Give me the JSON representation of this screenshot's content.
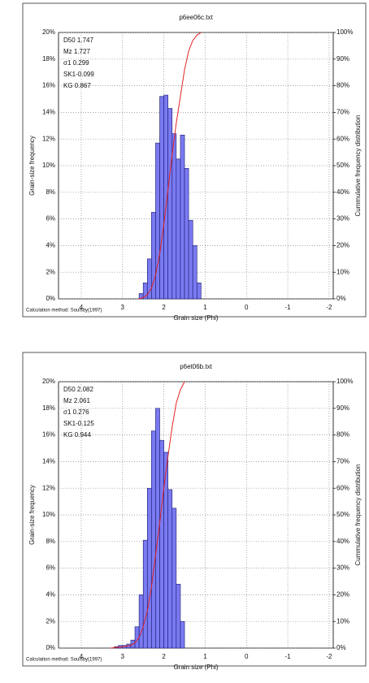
{
  "chart_data": [
    {
      "type": "histogram",
      "title": "p6ee06c.txt",
      "xlabel": "Grain size (Phi)",
      "ylabel": "Grain-size frequency",
      "y2label": "Cummulative frequency distribution",
      "note": "Calculation method: Soulsby(1997)",
      "stats": [
        "D50 1.747",
        "Mz 1.727",
        "σ1 0.299",
        "SK1-0.099",
        "KG 0.867"
      ],
      "bins": [
        2.6,
        2.5,
        2.4,
        2.3,
        2.2,
        2.1,
        2.0,
        1.9,
        1.8,
        1.7,
        1.6,
        1.5,
        1.4,
        1.3,
        1.2,
        1.1
      ],
      "counts": [
        0.4,
        1.2,
        3,
        6.5,
        11.7,
        15.2,
        15.3,
        14.3,
        12.4,
        10.5,
        12.3,
        9.8,
        5.9,
        4,
        1.2
      ],
      "color": "#7a7af2",
      "series": [
        {
          "color": "#e02424",
          "axis": "y2",
          "x": [
            2.6,
            2.5,
            2.4,
            2.3,
            2.2,
            2.1,
            2.0,
            1.9,
            1.8,
            1.7,
            1.6,
            1.5,
            1.4,
            1.3,
            1.2,
            1.1
          ],
          "values": [
            0,
            0.5,
            1.5,
            4,
            9,
            17,
            28,
            41,
            54,
            66,
            76,
            86,
            93,
            97,
            99,
            100
          ]
        }
      ],
      "xlim": [
        4.55,
        -2.1
      ],
      "xticks": [
        4,
        3,
        2,
        1,
        0,
        -1,
        -2
      ],
      "ylim": [
        0,
        20
      ],
      "yticks": [
        {
          "value": 0,
          "label": "0%"
        },
        {
          "value": 2,
          "label": "2%"
        },
        {
          "value": 4,
          "label": "4%"
        },
        {
          "value": 6,
          "label": "6%"
        },
        {
          "value": 8,
          "label": "8%"
        },
        {
          "value": 10,
          "label": "10%"
        },
        {
          "value": 12,
          "label": "12%"
        },
        {
          "value": 14,
          "label": "14%"
        },
        {
          "value": 16,
          "label": "16%"
        },
        {
          "value": 18,
          "label": "18%"
        },
        {
          "value": 20,
          "label": "20%"
        }
      ],
      "y2lim": [
        0,
        100
      ],
      "y2ticks": [
        {
          "value": 0,
          "label": "0%"
        },
        {
          "value": 10,
          "label": "10%"
        },
        {
          "value": 20,
          "label": "20%"
        },
        {
          "value": 30,
          "label": "30%"
        },
        {
          "value": 40,
          "label": "40%"
        },
        {
          "value": 50,
          "label": "50%"
        },
        {
          "value": 60,
          "label": "60%"
        },
        {
          "value": 70,
          "label": "70%"
        },
        {
          "value": 80,
          "label": "80%"
        },
        {
          "value": 90,
          "label": "90%"
        },
        {
          "value": 100,
          "label": "100%"
        }
      ],
      "grid": true
    },
    {
      "type": "histogram",
      "title": "p6et06b.txt",
      "xlabel": "Grain size (Phi)",
      "ylabel": "Grain-size frequency",
      "y2label": "Cummulative frequency distribution",
      "note": "Calculation method: Soulsby(1997)",
      "stats": [
        "D50 2.082",
        "Mz 2.061",
        "σ1 0.276",
        "SK1-0.125",
        "KG 0.944"
      ],
      "bins": [
        3.2,
        3.1,
        3.0,
        2.9,
        2.8,
        2.7,
        2.6,
        2.5,
        2.4,
        2.3,
        2.2,
        2.1,
        2.0,
        1.9,
        1.8,
        1.7,
        1.6,
        1.5
      ],
      "counts": [
        0.1,
        0.2,
        0.2,
        0.3,
        0.6,
        1.6,
        4,
        8.1,
        12,
        16.3,
        18,
        15.6,
        14.7,
        11.9,
        10.5,
        4.8,
        2
      ],
      "color": "#7a7af2",
      "series": [
        {
          "color": "#e02424",
          "axis": "y2",
          "x": [
            3.3,
            3.0,
            2.8,
            2.7,
            2.6,
            2.5,
            2.4,
            2.3,
            2.2,
            2.1,
            2.0,
            1.9,
            1.8,
            1.7,
            1.6,
            1.5
          ],
          "values": [
            0,
            0.5,
            1,
            2,
            4,
            8,
            14,
            23,
            35,
            47,
            60,
            72,
            83,
            92,
            97,
            100
          ]
        }
      ],
      "xlim": [
        4.55,
        -2.1
      ],
      "xticks": [
        4,
        3,
        2,
        1,
        0,
        -1,
        -2
      ],
      "ylim": [
        0,
        20
      ],
      "yticks": [
        {
          "value": 0,
          "label": "0%"
        },
        {
          "value": 2,
          "label": "2%"
        },
        {
          "value": 4,
          "label": "4%"
        },
        {
          "value": 6,
          "label": "6%"
        },
        {
          "value": 8,
          "label": "8%"
        },
        {
          "value": 10,
          "label": "10%"
        },
        {
          "value": 12,
          "label": "12%"
        },
        {
          "value": 14,
          "label": "14%"
        },
        {
          "value": 16,
          "label": "16%"
        },
        {
          "value": 18,
          "label": "18%"
        },
        {
          "value": 20,
          "label": "20%"
        }
      ],
      "y2lim": [
        0,
        100
      ],
      "y2ticks": [
        {
          "value": 0,
          "label": "0%"
        },
        {
          "value": 10,
          "label": "10%"
        },
        {
          "value": 20,
          "label": "20%"
        },
        {
          "value": 30,
          "label": "30%"
        },
        {
          "value": 40,
          "label": "40%"
        },
        {
          "value": 50,
          "label": "50%"
        },
        {
          "value": 60,
          "label": "60%"
        },
        {
          "value": 70,
          "label": "70%"
        },
        {
          "value": 80,
          "label": "80%"
        },
        {
          "value": 90,
          "label": "90%"
        },
        {
          "value": 100,
          "label": "100%"
        }
      ],
      "grid": true
    }
  ]
}
